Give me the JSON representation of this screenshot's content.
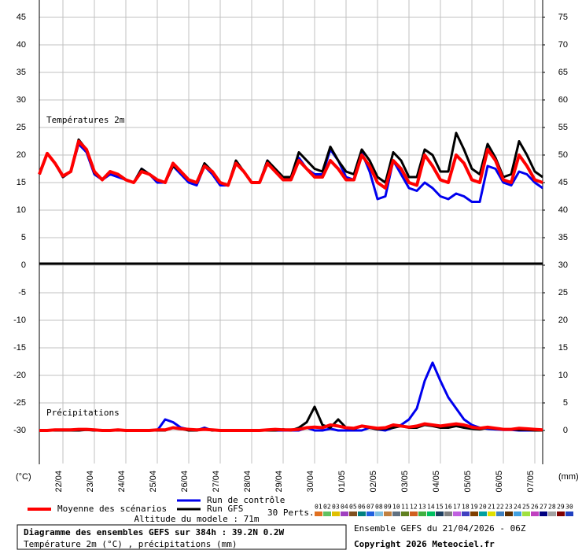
{
  "chart_data": {
    "type": "line",
    "temperature_label": "Températures 2m",
    "precip_label": "Précipitations",
    "y_unit": "(°C)",
    "y2_unit": "(mm)",
    "altitude": "Altitude du modele : 71m",
    "title": "Diagramme des ensembles GEFS sur 384h : 39.2N 0.2W",
    "subtitle": "Température 2m (°C) , précipitations (mm)",
    "run_info": "Ensemble GEFS du 21/04/2026 - 06Z",
    "copyright": "Copyright 2026 Meteociel.fr",
    "grid": true,
    "x": [
      0,
      6,
      12,
      18,
      24,
      30,
      36,
      42,
      48,
      54,
      60,
      66,
      72,
      78,
      84,
      90,
      96,
      102,
      108,
      114,
      120,
      126,
      132,
      138,
      144,
      150,
      156,
      162,
      168,
      174,
      180,
      186,
      192,
      198,
      204,
      210,
      216,
      222,
      228,
      234,
      240,
      246,
      252,
      258,
      264,
      270,
      276,
      282,
      288,
      294,
      300,
      306,
      312,
      318,
      324,
      330,
      336,
      342,
      348,
      354,
      360,
      366,
      372,
      378,
      384
    ],
    "xlim": [
      0,
      384
    ],
    "xticks": [
      {
        "value": 18,
        "label": "22/04"
      },
      {
        "value": 42,
        "label": "23/04"
      },
      {
        "value": 66,
        "label": "24/04"
      },
      {
        "value": 90,
        "label": "25/04"
      },
      {
        "value": 114,
        "label": "26/04"
      },
      {
        "value": 138,
        "label": "27/04"
      },
      {
        "value": 162,
        "label": "28/04"
      },
      {
        "value": 186,
        "label": "29/04"
      },
      {
        "value": 210,
        "label": "30/04"
      },
      {
        "value": 234,
        "label": "01/05"
      },
      {
        "value": 258,
        "label": "02/05"
      },
      {
        "value": 282,
        "label": "03/05"
      },
      {
        "value": 306,
        "label": "04/05"
      },
      {
        "value": 330,
        "label": "05/05"
      },
      {
        "value": 354,
        "label": "06/05"
      },
      {
        "value": 378,
        "label": "07/05"
      }
    ],
    "ylim": [
      -36,
      48
    ],
    "yticks": [
      -30,
      -25,
      -20,
      -15,
      -10,
      -5,
      0,
      5,
      10,
      15,
      20,
      25,
      30,
      35,
      40,
      45
    ],
    "y2lim": [
      -6,
      78
    ],
    "y2ticks": [
      0,
      5,
      10,
      15,
      20,
      25,
      30,
      35,
      40,
      45,
      50,
      55,
      60,
      65,
      70,
      75
    ],
    "series": [
      {
        "name": "Run de contrôle",
        "color": "#0000ee",
        "width": 3,
        "values": [
          16.5,
          20.3,
          18.5,
          16,
          17,
          22,
          20.5,
          16.5,
          15.5,
          16.5,
          16,
          15.5,
          15,
          17.5,
          16.5,
          15,
          15,
          18,
          16.5,
          15,
          14.5,
          18,
          16.5,
          14.5,
          14.5,
          18.5,
          17,
          15,
          15,
          19,
          17,
          15.5,
          15.5,
          19.5,
          17.5,
          16.5,
          16.5,
          21,
          19,
          16,
          15.5,
          20.5,
          17,
          12,
          12.5,
          19,
          16.5,
          14,
          13.5,
          15,
          14,
          12.5,
          12,
          13,
          12.5,
          11.5,
          11.5,
          18,
          17.5,
          15,
          14.5,
          17,
          16.5,
          15,
          14
        ],
        "y2_values": [
          0,
          0,
          0,
          0,
          0,
          0,
          0.2,
          0,
          0,
          0,
          0,
          0,
          0,
          0,
          0,
          0,
          2,
          1.5,
          0.5,
          0.2,
          0,
          0.5,
          0,
          0,
          0,
          0,
          0,
          0,
          0,
          0,
          0,
          0,
          0,
          0,
          0.5,
          0,
          0,
          0.3,
          0,
          0,
          0,
          0,
          0.5,
          0.2,
          0,
          0.5,
          1,
          2,
          4,
          9,
          12.3,
          9,
          6,
          4,
          2,
          1,
          0.5,
          0.3,
          0.2,
          0.1,
          0.1,
          0,
          0,
          0,
          0
        ]
      },
      {
        "name": "Run GFS",
        "color": "#000000",
        "width": 3,
        "values": [
          16.5,
          20.3,
          18.5,
          16,
          17,
          22.8,
          21,
          16.8,
          15.5,
          17,
          16.5,
          15.5,
          15,
          17.5,
          16.5,
          15.5,
          15,
          18,
          17,
          15.5,
          15,
          18.5,
          17,
          15,
          14.5,
          19,
          17,
          15,
          15,
          19,
          17.5,
          16,
          16,
          20.5,
          19,
          17.5,
          17,
          21.5,
          19,
          17,
          16.5,
          21,
          19,
          16,
          15,
          20.5,
          19,
          16,
          16,
          21,
          20,
          17,
          17,
          24,
          21,
          17.5,
          16.5,
          22,
          19.5,
          16,
          16.5,
          22.5,
          20,
          17,
          16
        ],
        "y2_values": [
          0,
          0,
          0,
          0,
          0,
          0,
          0.1,
          0,
          0,
          0,
          0,
          0,
          0,
          0,
          0,
          0,
          0,
          0.5,
          0.3,
          0,
          0,
          0.3,
          0,
          0,
          0,
          0,
          0,
          0,
          0,
          0,
          0,
          0.2,
          0,
          0.5,
          1.5,
          4.3,
          1,
          0.5,
          2,
          0.5,
          0.3,
          0.8,
          0.5,
          0.2,
          0.3,
          0.5,
          0.8,
          0.5,
          0.5,
          1,
          0.8,
          0.5,
          0.5,
          0.8,
          0.5,
          0.3,
          0.2,
          0.5,
          0.3,
          0.2,
          0.2,
          0.1,
          0.1,
          0,
          0
        ]
      },
      {
        "name": "Moyenne des scénarios",
        "color": "#ff0000",
        "width": 4,
        "values": [
          16.5,
          20.3,
          18.5,
          16.2,
          17,
          22.5,
          21,
          17,
          15.5,
          17,
          16.5,
          15.5,
          15,
          17,
          16.5,
          15.5,
          15,
          18.5,
          17,
          15.5,
          15,
          18,
          17,
          15,
          14.5,
          18.5,
          17,
          15,
          15,
          18.5,
          17,
          15.5,
          15.5,
          19,
          17.5,
          16,
          16,
          19,
          17.5,
          15.5,
          15.5,
          20,
          18,
          15,
          14,
          19,
          17.5,
          15,
          14.5,
          20,
          18,
          15.5,
          15,
          20,
          18.5,
          15.5,
          15,
          21,
          19,
          15.5,
          15,
          20,
          18,
          15.5,
          15
        ],
        "y2_values": [
          0,
          0,
          0.1,
          0.1,
          0.1,
          0.2,
          0.2,
          0.1,
          0,
          0,
          0.1,
          0,
          0,
          0,
          0,
          0.1,
          0.1,
          0.5,
          0.3,
          0.2,
          0.1,
          0.2,
          0.1,
          0,
          0,
          0,
          0,
          0,
          0,
          0.1,
          0.2,
          0.1,
          0.1,
          0.2,
          0.5,
          0.6,
          0.5,
          1,
          0.8,
          0.5,
          0.4,
          0.8,
          0.6,
          0.4,
          0.5,
          1,
          0.8,
          0.6,
          0.8,
          1.2,
          1,
          0.8,
          1,
          1.2,
          1,
          0.6,
          0.4,
          0.6,
          0.4,
          0.2,
          0.2,
          0.4,
          0.3,
          0.2,
          0.1
        ]
      }
    ],
    "perturbations": {
      "label": "30 Perts.",
      "members": [
        {
          "label": "01",
          "color": "#e07020"
        },
        {
          "label": "02",
          "color": "#60c060"
        },
        {
          "label": "03",
          "color": "#e0c000"
        },
        {
          "label": "04",
          "color": "#a040c0"
        },
        {
          "label": "05",
          "color": "#805020"
        },
        {
          "label": "06",
          "color": "#008080"
        },
        {
          "label": "07",
          "color": "#2060e0"
        },
        {
          "label": "08",
          "color": "#80c0e0"
        },
        {
          "label": "09",
          "color": "#c08040"
        },
        {
          "label": "10",
          "color": "#607080"
        },
        {
          "label": "11",
          "color": "#608020"
        },
        {
          "label": "12",
          "color": "#d06020"
        },
        {
          "label": "13",
          "color": "#40b040"
        },
        {
          "label": "14",
          "color": "#00c060"
        },
        {
          "label": "15",
          "color": "#204060"
        },
        {
          "label": "16",
          "color": "#808080"
        },
        {
          "label": "17",
          "color": "#c060e0"
        },
        {
          "label": "18",
          "color": "#4040c0"
        },
        {
          "label": "19",
          "color": "#804000"
        },
        {
          "label": "20",
          "color": "#00a0a0"
        },
        {
          "label": "21",
          "color": "#e0e000"
        },
        {
          "label": "22",
          "color": "#4080c0"
        },
        {
          "label": "23",
          "color": "#603000"
        },
        {
          "label": "24",
          "color": "#40a0e0"
        },
        {
          "label": "25",
          "color": "#a0e040"
        },
        {
          "label": "26",
          "color": "#c040c0"
        },
        {
          "label": "27",
          "color": "#000080"
        },
        {
          "label": "28",
          "color": "#a0a0a0"
        },
        {
          "label": "29",
          "color": "#800000"
        },
        {
          "label": "30",
          "color": "#2040c0"
        }
      ]
    }
  }
}
